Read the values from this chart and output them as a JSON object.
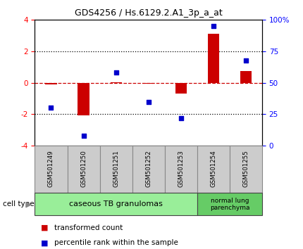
{
  "title": "GDS4256 / Hs.6129.2.A1_3p_a_at",
  "samples": [
    "GSM501249",
    "GSM501250",
    "GSM501251",
    "GSM501252",
    "GSM501253",
    "GSM501254",
    "GSM501255"
  ],
  "transformed_count": [
    -0.1,
    -2.05,
    0.05,
    -0.05,
    -0.7,
    3.1,
    0.75
  ],
  "percentile_rank": [
    30,
    8,
    58,
    35,
    22,
    95,
    68
  ],
  "ylim_left": [
    -4,
    4
  ],
  "ylim_right": [
    0,
    100
  ],
  "yticks_left": [
    -4,
    -2,
    0,
    2,
    4
  ],
  "yticks_right": [
    0,
    25,
    50,
    75,
    100
  ],
  "yticklabels_right": [
    "0",
    "25",
    "50",
    "75",
    "100%"
  ],
  "bar_color": "#cc0000",
  "dot_color": "#0000cc",
  "hline_color": "#cc0000",
  "dotline_color": "#000000",
  "group1_label": "caseous TB granulomas",
  "group2_label": "normal lung\nparenchyma",
  "group1_color": "#99ee99",
  "group2_color": "#66cc66",
  "cell_type_label": "cell type",
  "legend_bar_label": "transformed count",
  "legend_dot_label": "percentile rank within the sample",
  "bar_width": 0.35,
  "background_color": "#ffffff",
  "label_box_color": "#cccccc",
  "label_box_edge": "#888888"
}
